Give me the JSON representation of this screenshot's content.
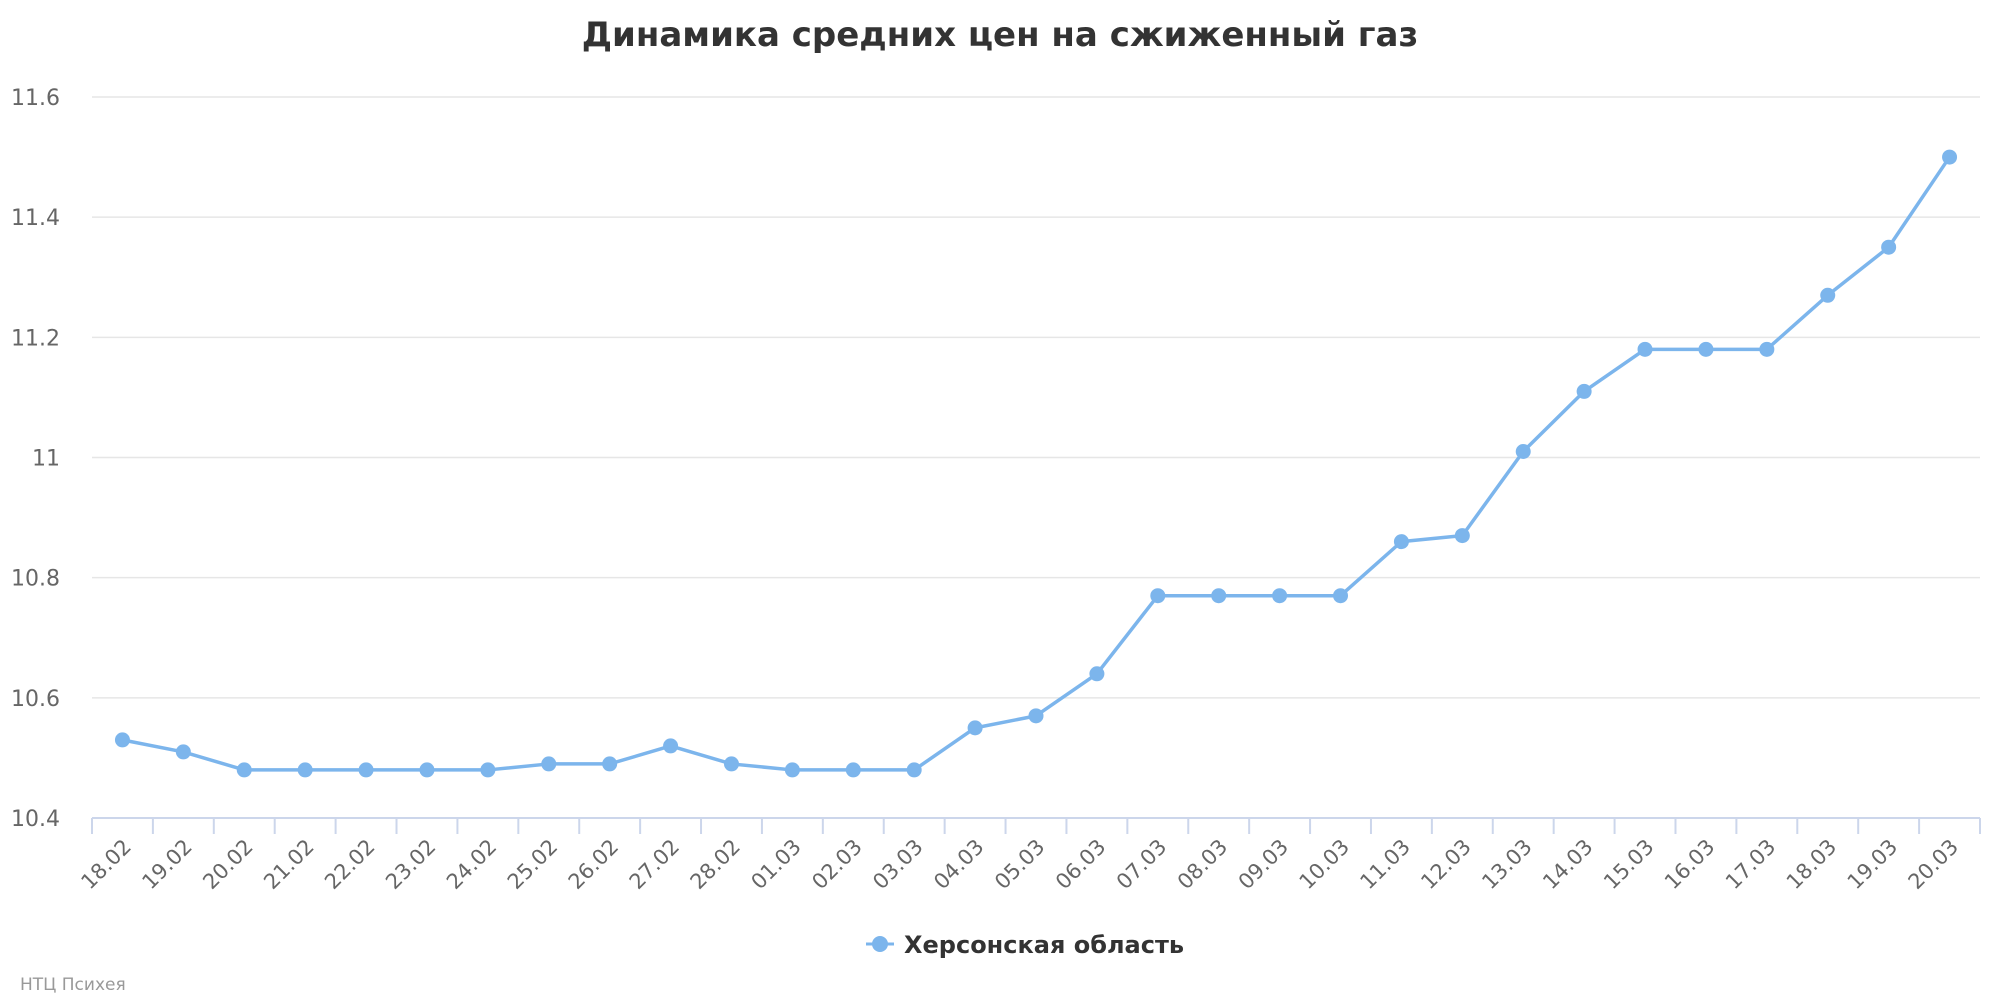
{
  "chart_data": {
    "type": "line",
    "title": "Динамика средних цен на сжиженный газ",
    "xlabel": "",
    "ylabel": "",
    "categories": [
      "18.02",
      "19.02",
      "20.02",
      "21.02",
      "22.02",
      "23.02",
      "24.02",
      "25.02",
      "26.02",
      "27.02",
      "28.02",
      "01.03",
      "02.03",
      "03.03",
      "04.03",
      "05.03",
      "06.03",
      "07.03",
      "08.03",
      "09.03",
      "10.03",
      "11.03",
      "12.03",
      "13.03",
      "14.03",
      "15.03",
      "16.03",
      "17.03",
      "18.03",
      "19.03",
      "20.03"
    ],
    "series": [
      {
        "name": "Херсонская область",
        "color": "#7cb5ec",
        "values": [
          10.53,
          10.51,
          10.48,
          10.48,
          10.48,
          10.48,
          10.48,
          10.49,
          10.49,
          10.52,
          10.49,
          10.48,
          10.48,
          10.48,
          10.55,
          10.57,
          10.64,
          10.77,
          10.77,
          10.77,
          10.77,
          10.86,
          10.87,
          11.01,
          11.11,
          11.18,
          11.18,
          11.18,
          11.27,
          11.35,
          11.5
        ]
      }
    ],
    "ylim": [
      10.4,
      11.6
    ],
    "yticks": [
      10.4,
      10.6,
      10.8,
      11,
      11.2,
      11.4,
      11.6
    ],
    "ytick_labels": [
      "10.4",
      "10.6",
      "10.8",
      "11",
      "11.2",
      "11.4",
      "11.6"
    ],
    "grid": true,
    "legend_position": "bottom-center"
  },
  "credit": "НТЦ Психея",
  "colors": {
    "grid": "#e6e6e6",
    "axis": "#ccd6eb",
    "series": "#7cb5ec"
  }
}
